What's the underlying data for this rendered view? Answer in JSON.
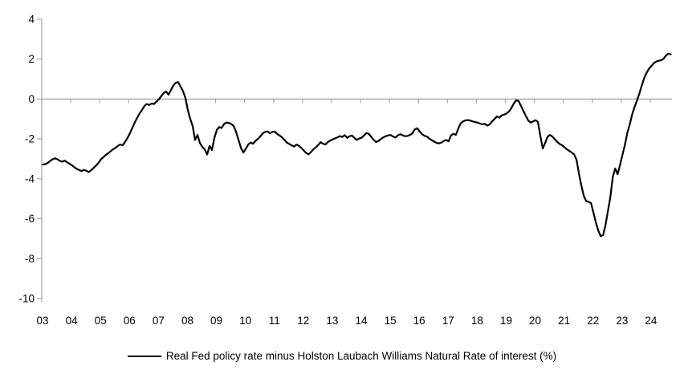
{
  "colors": {
    "background": "#ffffff",
    "line": "#000000",
    "axis": "#a6a6a6",
    "zero_line": "#a6a6a6",
    "text": "#000000"
  },
  "legend": {
    "label": "Real Fed policy rate minus Holston Laubach Williams Natural Rate of interest (%)"
  },
  "chart_data": {
    "type": "line",
    "title": "",
    "xlabel": "",
    "ylabel": "",
    "grid": "zero-line-only",
    "legend_position": "bottom-center",
    "ylim": [
      -10,
      4
    ],
    "xlim": [
      2003,
      2024.75
    ],
    "y_ticks": [
      4,
      2,
      0,
      -2,
      -4,
      -6,
      -8,
      -10
    ],
    "y_tick_labels": [
      "4",
      "2",
      "0",
      "-2",
      "-4",
      "-6",
      "-8",
      "-10"
    ],
    "x_tick_years": [
      2003,
      2004,
      2005,
      2006,
      2007,
      2008,
      2009,
      2010,
      2011,
      2012,
      2013,
      2014,
      2015,
      2016,
      2017,
      2018,
      2019,
      2020,
      2021,
      2022,
      2023,
      2024
    ],
    "x_tick_labels": [
      "03",
      "04",
      "05",
      "06",
      "07",
      "08",
      "09",
      "10",
      "11",
      "12",
      "13",
      "14",
      "15",
      "16",
      "17",
      "18",
      "19",
      "20",
      "21",
      "22",
      "23",
      "24"
    ],
    "series": [
      {
        "name": "Real Fed policy rate minus Holston Laubach Williams Natural Rate of interest (%)",
        "color": "#000000",
        "x_start_year": 2003,
        "frequency": "monthly",
        "values": [
          -3.28,
          -3.26,
          -3.2,
          -3.1,
          -3.02,
          -2.97,
          -3.02,
          -3.1,
          -3.14,
          -3.08,
          -3.17,
          -3.24,
          -3.32,
          -3.42,
          -3.5,
          -3.56,
          -3.61,
          -3.55,
          -3.6,
          -3.66,
          -3.56,
          -3.45,
          -3.33,
          -3.2,
          -3.02,
          -2.92,
          -2.8,
          -2.72,
          -2.62,
          -2.52,
          -2.45,
          -2.35,
          -2.28,
          -2.32,
          -2.15,
          -1.95,
          -1.72,
          -1.45,
          -1.18,
          -0.95,
          -0.72,
          -0.55,
          -0.35,
          -0.25,
          -0.3,
          -0.22,
          -0.25,
          -0.12,
          -0.02,
          0.15,
          0.3,
          0.38,
          0.22,
          0.45,
          0.68,
          0.82,
          0.85,
          0.62,
          0.4,
          0.05,
          -0.55,
          -1.0,
          -1.35,
          -2.05,
          -1.8,
          -2.2,
          -2.4,
          -2.52,
          -2.78,
          -2.35,
          -2.55,
          -1.95,
          -1.55,
          -1.4,
          -1.45,
          -1.25,
          -1.18,
          -1.2,
          -1.25,
          -1.35,
          -1.65,
          -2.05,
          -2.45,
          -2.68,
          -2.5,
          -2.28,
          -2.18,
          -2.24,
          -2.1,
          -2.0,
          -1.88,
          -1.72,
          -1.65,
          -1.62,
          -1.72,
          -1.65,
          -1.63,
          -1.75,
          -1.83,
          -1.92,
          -2.05,
          -2.18,
          -2.25,
          -2.32,
          -2.38,
          -2.28,
          -2.35,
          -2.45,
          -2.58,
          -2.7,
          -2.77,
          -2.66,
          -2.52,
          -2.42,
          -2.3,
          -2.16,
          -2.24,
          -2.28,
          -2.15,
          -2.08,
          -2.02,
          -1.97,
          -1.92,
          -1.86,
          -1.9,
          -1.81,
          -1.95,
          -1.86,
          -1.83,
          -1.95,
          -2.05,
          -1.97,
          -1.94,
          -1.82,
          -1.7,
          -1.75,
          -1.9,
          -2.05,
          -2.15,
          -2.1,
          -2.0,
          -1.92,
          -1.86,
          -1.82,
          -1.8,
          -1.88,
          -1.93,
          -1.82,
          -1.76,
          -1.82,
          -1.86,
          -1.85,
          -1.8,
          -1.72,
          -1.52,
          -1.46,
          -1.62,
          -1.76,
          -1.84,
          -1.88,
          -1.98,
          -2.06,
          -2.13,
          -2.2,
          -2.22,
          -2.18,
          -2.1,
          -2.05,
          -2.12,
          -1.82,
          -1.74,
          -1.8,
          -1.48,
          -1.22,
          -1.12,
          -1.07,
          -1.05,
          -1.08,
          -1.12,
          -1.15,
          -1.18,
          -1.23,
          -1.27,
          -1.24,
          -1.33,
          -1.27,
          -1.12,
          -1.0,
          -0.87,
          -0.93,
          -0.82,
          -0.78,
          -0.72,
          -0.62,
          -0.45,
          -0.22,
          -0.06,
          -0.1,
          -0.35,
          -0.6,
          -0.85,
          -1.08,
          -1.18,
          -1.12,
          -1.06,
          -1.15,
          -1.85,
          -2.48,
          -2.2,
          -1.88,
          -1.8,
          -1.88,
          -2.02,
          -2.15,
          -2.25,
          -2.32,
          -2.42,
          -2.52,
          -2.6,
          -2.68,
          -2.78,
          -3.05,
          -3.75,
          -4.35,
          -4.85,
          -5.12,
          -5.15,
          -5.22,
          -5.7,
          -6.2,
          -6.6,
          -6.87,
          -6.82,
          -6.3,
          -5.6,
          -4.9,
          -3.9,
          -3.48,
          -3.77,
          -3.3,
          -2.8,
          -2.3,
          -1.7,
          -1.28,
          -0.78,
          -0.4,
          -0.08,
          0.28,
          0.68,
          1.05,
          1.32,
          1.52,
          1.66,
          1.8,
          1.88,
          1.92,
          1.94,
          2.02,
          2.18,
          2.28,
          2.24
        ]
      }
    ]
  }
}
